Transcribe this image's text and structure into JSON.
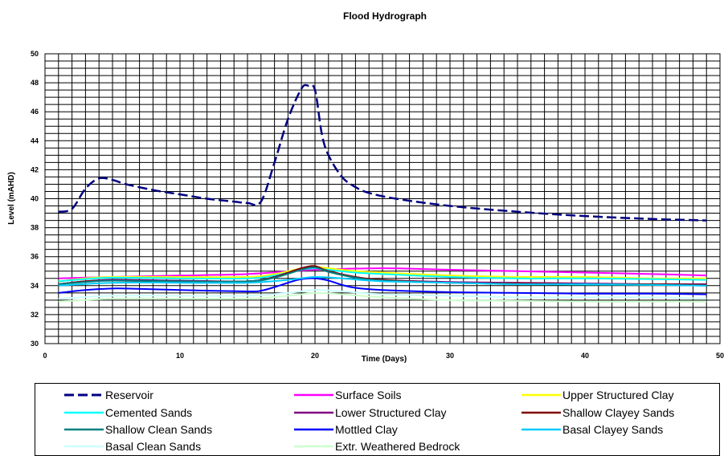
{
  "chart_data": {
    "type": "line",
    "title": "Flood Hydrograph",
    "xlabel": "Time (Days)",
    "ylabel": "Level (mAHD)",
    "xlim": [
      0,
      50
    ],
    "ylim": [
      30,
      50
    ],
    "x_ticks": [
      "0",
      "10",
      "20",
      "30",
      "40",
      "50"
    ],
    "y_ticks": [
      "30",
      "32",
      "34",
      "36",
      "38",
      "40",
      "42",
      "44",
      "46",
      "48",
      "50"
    ],
    "x_minor_step": 1,
    "y_minor_step": 0.5,
    "grid": true,
    "legend_position": "bottom",
    "series": [
      {
        "name": "Reservoir",
        "color": "#000080",
        "dash": true,
        "x": [
          1,
          2,
          3,
          4,
          5,
          6,
          8,
          10,
          12,
          14,
          15,
          16,
          17,
          18,
          19,
          19.5,
          20,
          20.5,
          21,
          22,
          23,
          24,
          26,
          30,
          35,
          40,
          45,
          49
        ],
        "y": [
          39.1,
          39.3,
          40.7,
          41.4,
          41.3,
          41.0,
          40.6,
          40.3,
          40.0,
          39.8,
          39.7,
          39.8,
          42.5,
          45.5,
          47.6,
          47.8,
          47.5,
          44.5,
          43.0,
          41.5,
          40.8,
          40.4,
          40.0,
          39.5,
          39.1,
          38.8,
          38.6,
          38.5
        ]
      },
      {
        "name": "Surface Soils",
        "color": "#FF00FF",
        "x": [
          1,
          5,
          10,
          15,
          20,
          25,
          30,
          35,
          40,
          45,
          49
        ],
        "y": [
          34.5,
          34.6,
          34.7,
          34.8,
          35.1,
          35.2,
          35.1,
          35.0,
          34.9,
          34.8,
          34.7
        ]
      },
      {
        "name": "Upper Structured Clay",
        "color": "#FFFF00",
        "x": [
          1,
          3,
          5,
          10,
          15,
          17,
          19,
          20,
          21,
          23,
          25,
          30,
          35,
          40,
          45,
          49
        ],
        "y": [
          34.3,
          34.5,
          34.6,
          34.6,
          34.6,
          34.8,
          35.2,
          35.3,
          35.2,
          35.0,
          34.9,
          34.7,
          34.6,
          34.6,
          34.5,
          34.5
        ]
      },
      {
        "name": "Cemented Sands",
        "color": "#00FFFF",
        "x": [
          1,
          3,
          5,
          10,
          15,
          17,
          19,
          20,
          21,
          23,
          25,
          30,
          35,
          40,
          45,
          49
        ],
        "y": [
          34.3,
          34.45,
          34.55,
          34.5,
          34.5,
          34.7,
          35.1,
          35.2,
          35.1,
          34.9,
          34.8,
          34.6,
          34.5,
          34.5,
          34.45,
          34.4
        ]
      },
      {
        "name": "Lower Structured Clay",
        "color": "#800080",
        "x": [
          1,
          3,
          5,
          10,
          15,
          17,
          19,
          20,
          21,
          23,
          25,
          30,
          35,
          40,
          45,
          49
        ],
        "y": [
          34.1,
          34.3,
          34.4,
          34.35,
          34.3,
          34.6,
          35.2,
          35.3,
          35.0,
          34.6,
          34.4,
          34.25,
          34.2,
          34.15,
          34.1,
          34.1
        ]
      },
      {
        "name": "Shallow Clayey Sands",
        "color": "#800000",
        "x": [
          1,
          3,
          5,
          10,
          15,
          17,
          19,
          20,
          21,
          23,
          25,
          30,
          35,
          40,
          45,
          49
        ],
        "y": [
          34.1,
          34.3,
          34.35,
          34.3,
          34.3,
          34.6,
          35.2,
          35.35,
          35.0,
          34.6,
          34.4,
          34.2,
          34.15,
          34.1,
          34.1,
          34.05
        ]
      },
      {
        "name": "Shallow Clean Sands",
        "color": "#008080",
        "x": [
          1,
          3,
          5,
          10,
          15,
          17,
          19,
          20,
          21,
          23,
          25,
          30,
          35,
          40,
          45,
          49
        ],
        "y": [
          34.1,
          34.25,
          34.35,
          34.3,
          34.3,
          34.55,
          35.1,
          35.25,
          34.95,
          34.55,
          34.35,
          34.2,
          34.1,
          34.05,
          34.05,
          34.0
        ]
      },
      {
        "name": "Mottled Clay",
        "color": "#0000FF",
        "x": [
          1,
          3,
          5,
          6,
          10,
          15,
          16,
          17,
          18,
          19,
          20,
          21,
          22,
          23,
          25,
          30,
          35,
          40,
          45,
          49
        ],
        "y": [
          33.5,
          33.7,
          33.8,
          33.8,
          33.7,
          33.6,
          33.65,
          33.9,
          34.2,
          34.45,
          34.5,
          34.35,
          34.05,
          33.85,
          33.7,
          33.55,
          33.5,
          33.45,
          33.45,
          33.4
        ]
      },
      {
        "name": "Basal Clayey Sands",
        "color": "#00CCFF",
        "x": [
          1,
          5,
          10,
          15,
          18,
          20,
          22,
          25,
          30,
          35,
          40,
          45,
          49
        ],
        "y": [
          34.0,
          34.2,
          34.2,
          34.2,
          34.4,
          34.6,
          34.5,
          34.3,
          34.2,
          34.1,
          34.1,
          34.05,
          34.0
        ]
      },
      {
        "name": "Basal Clean Sands",
        "color": "#CCFFFF",
        "x": [
          1,
          5,
          10,
          15,
          18,
          20,
          22,
          25,
          30,
          35,
          40,
          45,
          49
        ],
        "y": [
          33.1,
          33.3,
          33.3,
          33.3,
          33.5,
          33.7,
          33.6,
          33.4,
          33.3,
          33.2,
          33.2,
          33.2,
          33.1
        ]
      },
      {
        "name": "Extr. Weathered Bedrock",
        "color": "#CCFFCC",
        "x": [
          1,
          5,
          10,
          15,
          18,
          20,
          22,
          25,
          30,
          35,
          40,
          45,
          49
        ],
        "y": [
          32.9,
          33.1,
          33.1,
          33.1,
          33.3,
          33.5,
          33.4,
          33.2,
          33.0,
          32.95,
          32.9,
          32.9,
          32.9
        ]
      }
    ]
  }
}
